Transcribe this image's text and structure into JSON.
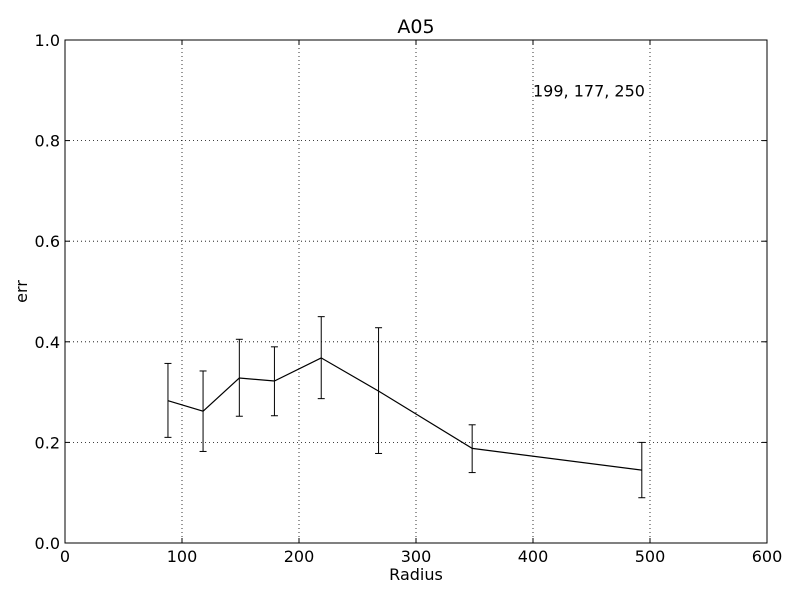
{
  "chart_data": {
    "type": "line",
    "title": "A05",
    "xlabel": "Radius",
    "ylabel": "err",
    "xlim": [
      0,
      600
    ],
    "ylim": [
      0.0,
      1.0
    ],
    "xticks": [
      0,
      100,
      200,
      300,
      400,
      500,
      600
    ],
    "yticks": [
      0.0,
      0.2,
      0.4,
      0.6,
      0.8,
      1.0
    ],
    "xtick_labels": [
      "0",
      "100",
      "200",
      "300",
      "400",
      "500",
      "600"
    ],
    "ytick_labels": [
      "0.0",
      "0.2",
      "0.4",
      "0.6",
      "0.8",
      "1.0"
    ],
    "grid": true,
    "annotation": {
      "text": "199, 177, 250",
      "x": 400,
      "y": 0.9
    },
    "color": "#000000",
    "series": [
      {
        "x": [
          88,
          118,
          149,
          179,
          219,
          268,
          348,
          493
        ],
        "y": [
          0.283,
          0.262,
          0.328,
          0.322,
          0.368,
          0.302,
          0.188,
          0.145
        ],
        "yerr_low": [
          0.21,
          0.182,
          0.252,
          0.253,
          0.287,
          0.178,
          0.14,
          0.09
        ],
        "yerr_high": [
          0.357,
          0.342,
          0.405,
          0.39,
          0.45,
          0.428,
          0.235,
          0.2
        ]
      }
    ]
  }
}
